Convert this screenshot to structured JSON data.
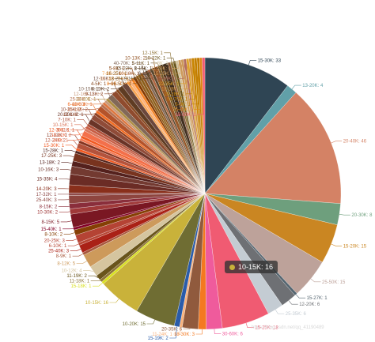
{
  "chart_data": {
    "type": "pie",
    "title": "",
    "slices": [
      {
        "label": "15-30K",
        "value": 33,
        "color": "#2f4554"
      },
      {
        "label": "13-20K",
        "value": 4,
        "color": "#61a0a8"
      },
      {
        "label": "20-40K",
        "value": 46,
        "color": "#d48265"
      },
      {
        "label": "20-30K",
        "value": 8,
        "color": "#6e9f7d"
      },
      {
        "label": "15-20K",
        "value": 15,
        "color": "#ca8622"
      },
      {
        "label": "25-50K",
        "value": 15,
        "color": "#bda29a"
      },
      {
        "label": "15-27K",
        "value": 1,
        "color": "#546570"
      },
      {
        "label": "12-20K",
        "value": 6,
        "color": "#6e7074"
      },
      {
        "label": "25-35K",
        "value": 6,
        "color": "#c4ccd3"
      },
      {
        "label": "15-25K",
        "value": 18,
        "color": "#f05b72"
      },
      {
        "label": "30-60K",
        "value": 6,
        "color": "#ef5b9c"
      },
      {
        "label": "18-30K",
        "value": 3,
        "color": "#f47920"
      },
      {
        "label": "20-35K",
        "value": 6,
        "color": "#905a3d"
      },
      {
        "label": "11-24K",
        "value": 1,
        "color": "#fab27b"
      },
      {
        "label": "15-19K",
        "value": 2,
        "color": "#2a5caa"
      },
      {
        "label": "10-20K",
        "value": 15,
        "color": "#6f6d33"
      },
      {
        "label": "10-15K",
        "value": 16,
        "color": "#c9b23a"
      },
      {
        "label": "15-18K",
        "value": 1,
        "color": "#d9e021"
      },
      {
        "label": "11-18K",
        "value": 1,
        "color": "#8e7437"
      },
      {
        "label": "11-19K",
        "value": 2,
        "color": "#69541b"
      },
      {
        "label": "10-12K",
        "value": 4,
        "color": "#d5c59f"
      },
      {
        "label": "8-12K",
        "value": 5,
        "color": "#cd9a5b"
      },
      {
        "label": "8-9K",
        "value": 1,
        "color": "#a7573b"
      },
      {
        "label": "25-40K",
        "value": 3,
        "color": "#aa2116"
      },
      {
        "label": "6-10K",
        "value": 1,
        "color": "#b64533"
      },
      {
        "label": "20-25K",
        "value": 3,
        "color": "#b54334"
      },
      {
        "label": "8-10K",
        "value": 2,
        "color": "#853f04"
      },
      {
        "label": "15-40K",
        "value": 1,
        "color": "#840228"
      },
      {
        "label": "8-15K",
        "value": 5,
        "color": "#7a1723"
      },
      {
        "label": "10-30K",
        "value": 2,
        "color": "#a03939"
      },
      {
        "label": "8-15K",
        "value": 2,
        "color": "#8a2e3b"
      },
      {
        "label": "25-40K",
        "value": 3,
        "color": "#8e453f"
      },
      {
        "label": "17-32K",
        "value": 1,
        "color": "#8f4b4a"
      },
      {
        "label": "14-20K",
        "value": 3,
        "color": "#892f1b"
      },
      {
        "label": "15-35K",
        "value": 4,
        "color": "#6b2c25"
      },
      {
        "label": "10-16K",
        "value": 3,
        "color": "#733a31"
      },
      {
        "label": "13-18K",
        "value": 2,
        "color": "#54211d"
      },
      {
        "label": "17-25K",
        "value": 3,
        "color": "#78331e"
      },
      {
        "label": "15-28K",
        "value": 1,
        "color": "#53261f"
      },
      {
        "label": "15-30K",
        "value": 1,
        "color": "#f15a22"
      },
      {
        "label": "12-24K",
        "value": 2,
        "color": "#b4533c"
      },
      {
        "label": "12-13K",
        "value": 1,
        "color": "#84331f"
      },
      {
        "label": "4-5K",
        "value": 1,
        "color": "#f47a55"
      },
      {
        "label": "12-30K",
        "value": 1,
        "color": "#f15a22"
      },
      {
        "label": "10-11K",
        "value": 2,
        "color": "#f3704b"
      },
      {
        "label": "10-15K",
        "value": 1,
        "color": "#da765b"
      },
      {
        "label": "9-11K",
        "value": 1,
        "color": "#c85d44"
      },
      {
        "label": "7-10K",
        "value": 1,
        "color": "#ae5039"
      },
      {
        "label": "20-30K",
        "value": 2,
        "color": "#6a3427"
      },
      {
        "label": "10-35K",
        "value": 2,
        "color": "#8f4b38"
      },
      {
        "label": "12-14K",
        "value": 1,
        "color": "#8e3e1f"
      },
      {
        "label": "6-11K",
        "value": 1,
        "color": "#f36c21"
      },
      {
        "label": "15-18K",
        "value": 2,
        "color": "#b4532a"
      },
      {
        "label": "25-30K",
        "value": 1,
        "color": "#b7704f"
      },
      {
        "label": "40-60K",
        "value": 1,
        "color": "#de773f"
      },
      {
        "label": "12-16K",
        "value": 1,
        "color": "#c99979"
      },
      {
        "label": "13-20K",
        "value": 1,
        "color": "#ad8b3d"
      },
      {
        "label": "10-15K",
        "value": 2,
        "color": "#826858"
      },
      {
        "label": "9-13K",
        "value": 2,
        "color": "#8f4b2e"
      },
      {
        "label": "4-5K",
        "value": 1,
        "color": "#87481f"
      },
      {
        "label": "8-13K",
        "value": 2,
        "color": "#5f3c23"
      },
      {
        "label": "12-16K",
        "value": 2,
        "color": "#6b473c"
      },
      {
        "label": "7-8K",
        "value": 1,
        "color": "#faa755"
      },
      {
        "label": "10-14K",
        "value": 1,
        "color": "#fab27b"
      },
      {
        "label": "8-9K",
        "value": 1,
        "color": "#f58220"
      },
      {
        "label": "5-8K",
        "value": 1,
        "color": "#843900"
      },
      {
        "label": "16-25K",
        "value": 1,
        "color": "#905d1d"
      },
      {
        "label": "18-25K",
        "value": 1,
        "color": "#8a5d19"
      },
      {
        "label": "26-50K",
        "value": 1,
        "color": "#8c531b"
      },
      {
        "label": "40-70K",
        "value": 1,
        "color": "#826858"
      },
      {
        "label": "15-22K",
        "value": 1,
        "color": "#64492b"
      },
      {
        "label": "10-18K",
        "value": 1,
        "color": "#ae6642"
      },
      {
        "label": "9-11K",
        "value": 1,
        "color": "#56452d"
      },
      {
        "label": "10-13K",
        "value": 2,
        "color": "#96582a"
      },
      {
        "label": "5-11K",
        "value": 1,
        "color": "#705628"
      },
      {
        "label": "8-15K",
        "value": 1,
        "color": "#4a3113"
      },
      {
        "label": "6-15K",
        "value": 2,
        "color": "#412f1f"
      },
      {
        "label": "6-15K",
        "value": 1,
        "color": "#845538"
      },
      {
        "label": "12-15K",
        "value": 1,
        "color": "#8e7437"
      },
      {
        "label": "10-22K",
        "value": 1,
        "color": "#69541b"
      },
      {
        "label": "5-8K",
        "value": 1,
        "color": "#d5c59f"
      },
      {
        "label": "11-20K",
        "value": 1,
        "color": "#cd9a5b"
      },
      {
        "label": "15-25K",
        "value": 1,
        "color": "#cd9a5b"
      },
      {
        "label": "15-20K",
        "value": 1,
        "color": "#b36d61"
      },
      {
        "label": "22-35K",
        "value": 1,
        "color": "#dea32c"
      },
      {
        "label": "18-28K",
        "value": 1,
        "color": "#d1923f"
      },
      {
        "label": "20-28K",
        "value": 1,
        "color": "#c88400"
      },
      {
        "label": "50-70K",
        "value": 1,
        "color": "#c37e00"
      },
      {
        "label": "5-9K",
        "value": 1,
        "color": "#c37e00"
      },
      {
        "label": "25-45K",
        "value": 1,
        "color": "#e0861a"
      },
      {
        "label": "18-20K",
        "value": 1,
        "color": "#f05b72"
      }
    ]
  },
  "tooltip": {
    "label": "10-15K",
    "value": "16"
  },
  "watermark": "https://blog.csdn.net/qq_41190489"
}
